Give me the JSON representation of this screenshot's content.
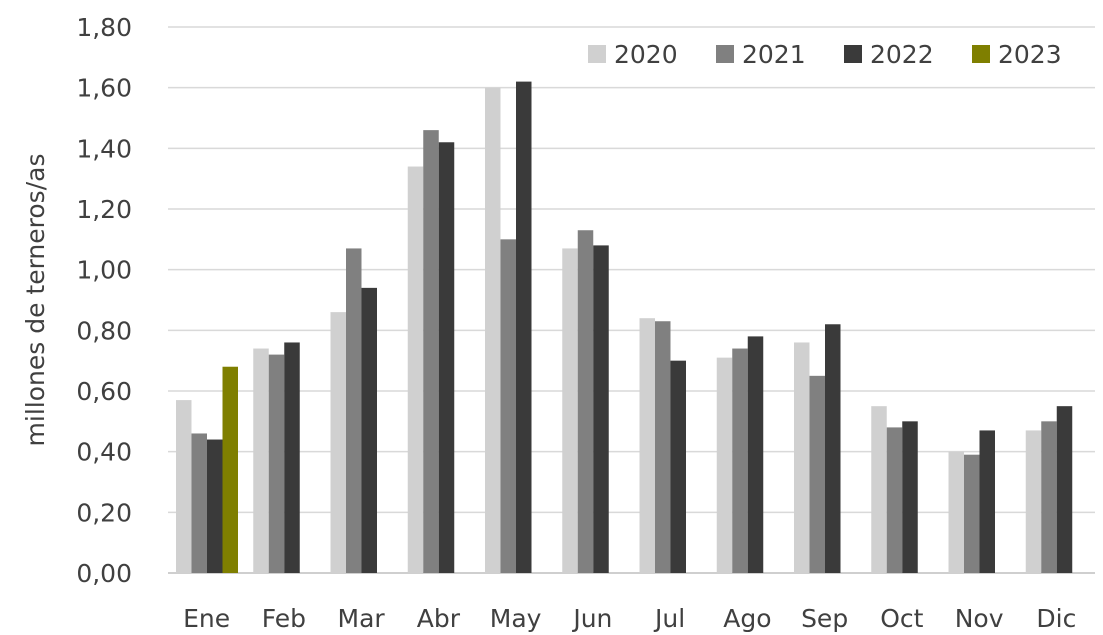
{
  "chart_data": {
    "type": "bar",
    "title": "",
    "xlabel": "",
    "ylabel": "millones de terneros/as",
    "ylim": [
      0,
      1.8
    ],
    "yticks": [
      "0,00",
      "0,20",
      "0,40",
      "0,60",
      "0,80",
      "1,00",
      "1,20",
      "1,40",
      "1,60",
      "1,80"
    ],
    "categories": [
      "Ene",
      "Feb",
      "Mar",
      "Abr",
      "May",
      "Jun",
      "Jul",
      "Ago",
      "Sep",
      "Oct",
      "Nov",
      "Dic"
    ],
    "grid": true,
    "legend_position": "top-right",
    "series": [
      {
        "name": "2020",
        "color": "#d0d0d0",
        "values": [
          0.57,
          0.74,
          0.86,
          1.34,
          1.6,
          1.07,
          0.84,
          0.71,
          0.76,
          0.55,
          0.4,
          0.47
        ]
      },
      {
        "name": "2021",
        "color": "#808080",
        "values": [
          0.46,
          0.72,
          1.07,
          1.46,
          1.1,
          1.13,
          0.83,
          0.74,
          0.65,
          0.48,
          0.39,
          0.5
        ]
      },
      {
        "name": "2022",
        "color": "#3a3a3a",
        "values": [
          0.44,
          0.76,
          0.94,
          1.42,
          1.62,
          1.08,
          0.7,
          0.78,
          0.82,
          0.5,
          0.47,
          0.55
        ]
      },
      {
        "name": "2023",
        "color": "#7f7f00",
        "values": [
          0.68,
          null,
          null,
          null,
          null,
          null,
          null,
          null,
          null,
          null,
          null,
          null
        ]
      }
    ]
  }
}
